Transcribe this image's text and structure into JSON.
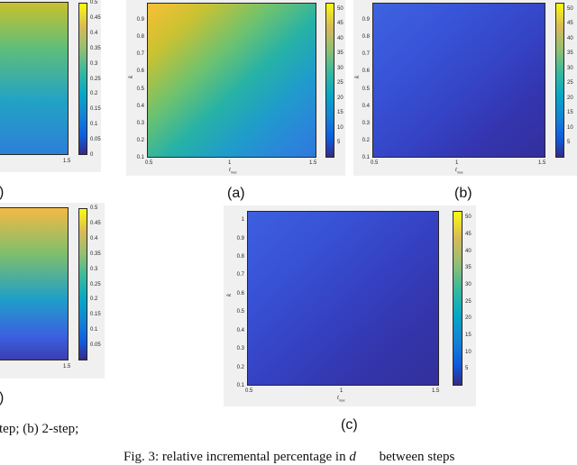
{
  "captions": {
    "prev_b_tail": ")",
    "prev_c_tail": ")",
    "a": "(a)",
    "b": "(b)",
    "c": "(c)"
  },
  "text": {
    "prev_caption_tail": "tep; (b) 2-step;",
    "fig_caption_prefix": "Fig. 3: relative incremental percentage in",
    "fig_caption_math": "d",
    "fig_caption_suffix": "between steps"
  },
  "axis_labels": {
    "x_var": "t",
    "x_sub": "max",
    "y_var": "k"
  },
  "colors": {
    "panel_bg": "#f0f0f0",
    "parula_low": "#352a87",
    "parula_high": "#f9fb0e"
  },
  "chart_data": [
    {
      "id": "left-top-partial",
      "type": "heatmap",
      "x_ticks": [
        "1.5"
      ],
      "cbar_ticks": [
        "0.5",
        "0.45",
        "0.4",
        "0.35",
        "0.3",
        "0.25",
        "0.2",
        "0.15",
        "0.1",
        "0.05",
        "0"
      ],
      "cbar_range": [
        0,
        0.5
      ]
    },
    {
      "id": "left-bottom-partial",
      "type": "heatmap",
      "x_ticks": [
        "1.5"
      ],
      "cbar_ticks": [
        "0.5",
        "0.45",
        "0.4",
        "0.35",
        "0.3",
        "0.25",
        "0.2",
        "0.15",
        "0.1",
        "0.05"
      ],
      "cbar_range": [
        0,
        0.5
      ]
    },
    {
      "id": "a",
      "type": "heatmap",
      "x_ticks": [
        "0.5",
        "1",
        "1.5"
      ],
      "y_ticks": [
        "0.9",
        "0.8",
        "0.7",
        "0.6",
        "0.5",
        "0.4",
        "0.3",
        "0.2",
        "0.1"
      ],
      "xlim": [
        0.5,
        1.5
      ],
      "ylim": [
        0.1,
        1
      ],
      "cbar_ticks": [
        "50",
        "45",
        "40",
        "35",
        "30",
        "25",
        "20",
        "15",
        "10",
        "5"
      ],
      "cbar_range": [
        0,
        52
      ]
    },
    {
      "id": "b",
      "type": "heatmap",
      "x_ticks": [
        "0.5",
        "1",
        "1.5"
      ],
      "y_ticks": [
        "0.9",
        "0.8",
        "0.7",
        "0.6",
        "0.5",
        "0.4",
        "0.3",
        "0.2",
        "0.1"
      ],
      "xlim": [
        0.5,
        1.5
      ],
      "ylim": [
        0.1,
        1
      ],
      "cbar_ticks": [
        "50",
        "45",
        "40",
        "35",
        "30",
        "25",
        "20",
        "15",
        "10",
        "5"
      ],
      "cbar_range": [
        0,
        52
      ]
    },
    {
      "id": "c",
      "type": "heatmap",
      "x_ticks": [
        "0.5",
        "1",
        "1.5"
      ],
      "y_ticks": [
        "1",
        "0.9",
        "0.8",
        "0.7",
        "0.6",
        "0.5",
        "0.4",
        "0.3",
        "0.2",
        "0.1"
      ],
      "xlim": [
        0.5,
        1.5
      ],
      "ylim": [
        0.1,
        1.05
      ],
      "cbar_ticks": [
        "50",
        "45",
        "40",
        "35",
        "30",
        "25",
        "20",
        "15",
        "10",
        "5"
      ],
      "cbar_range": [
        0,
        52
      ]
    }
  ]
}
